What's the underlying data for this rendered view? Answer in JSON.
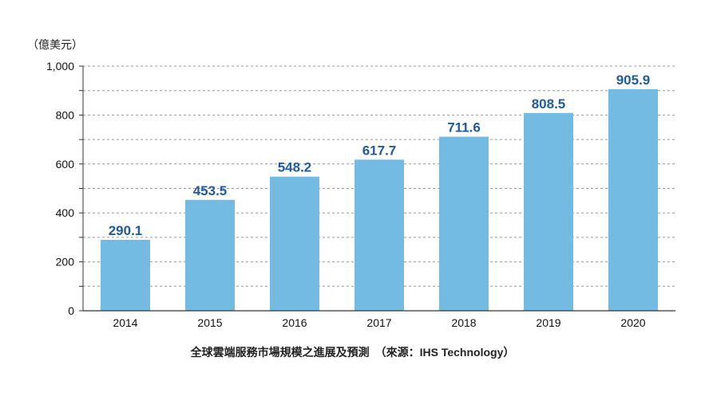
{
  "chart_data": {
    "type": "bar",
    "unit_label": "（億美元）",
    "categories": [
      "2014",
      "2015",
      "2016",
      "2017",
      "2018",
      "2019",
      "2020"
    ],
    "values": [
      290.1,
      453.5,
      548.2,
      617.7,
      711.6,
      808.5,
      905.9
    ],
    "value_labels": [
      "290.1",
      "453.5",
      "548.2",
      "617.7",
      "711.6",
      "808.5",
      "905.9"
    ],
    "ylim": [
      0,
      1000
    ],
    "yticks": [
      0,
      200,
      400,
      600,
      800,
      1000
    ],
    "ytick_labels": [
      "0",
      "200",
      "400",
      "600",
      "800",
      "1,000"
    ],
    "grid": true,
    "caption": "全球雲端服務市場規模之進展及預測　（來源：IHS Technology）",
    "colors": {
      "bar": "#74BBE4",
      "value_label": "#1F5AA6",
      "grid": "#999999",
      "axis": "#333333"
    }
  }
}
